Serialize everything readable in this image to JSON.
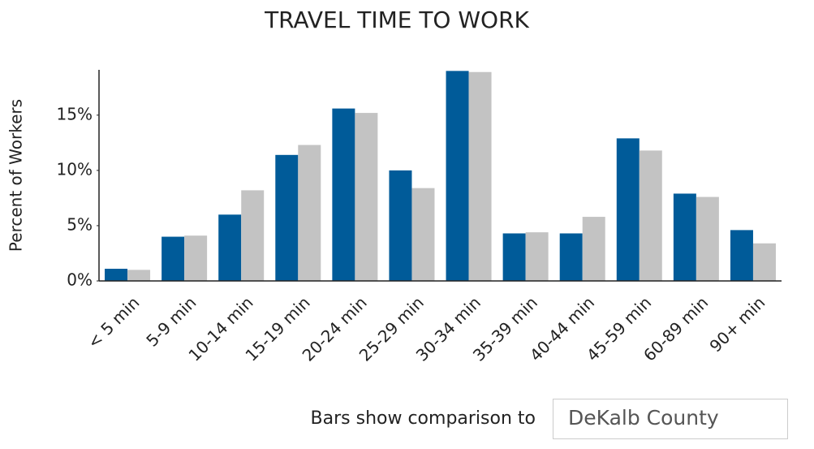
{
  "chart_data": {
    "type": "bar",
    "title": "TRAVEL TIME TO WORK",
    "y_label": "Percent of Workers",
    "categories": [
      "< 5 min",
      "5-9 min",
      "10-14 min",
      "15-19 min",
      "20-24 min",
      "25-29 min",
      "30-34 min",
      "35-39 min",
      "40-44 min",
      "45-59 min",
      "60-89 min",
      "90+ min"
    ],
    "series": [
      {
        "color": "#005b99",
        "values": [
          1.1,
          4.0,
          6.0,
          11.4,
          15.6,
          10.0,
          19.0,
          4.3,
          4.3,
          12.9,
          7.9,
          4.6
        ]
      },
      {
        "color": "#c3c3c3",
        "values": [
          1.0,
          4.1,
          8.2,
          12.3,
          15.2,
          8.4,
          18.9,
          4.4,
          5.8,
          11.8,
          7.6,
          3.4
        ]
      }
    ],
    "ylim": [
      0,
      19.1
    ],
    "yticks": [
      {
        "value": 0,
        "label": "0%"
      },
      {
        "value": 5,
        "label": "5%"
      },
      {
        "value": 10,
        "label": "10%"
      },
      {
        "value": 15,
        "label": "15%"
      }
    ],
    "grid": false
  },
  "controls": {
    "comparison_label": "Bars show comparison to",
    "comparison_value": "DeKalb County"
  }
}
